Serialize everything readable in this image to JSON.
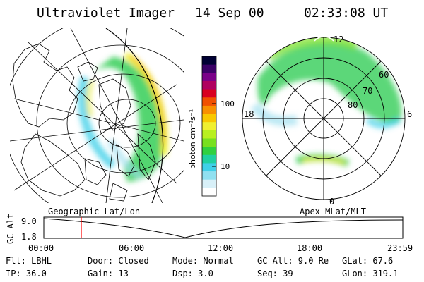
{
  "header": {
    "instrument": "Ultraviolet Imager",
    "date": "14 Sep 00",
    "time": "02:33:08 UT"
  },
  "colorbar": {
    "unit_label": "photon cm⁻²s⁻¹",
    "ticks": [
      "100",
      "10"
    ],
    "colors": [
      "#000033",
      "#3a0066",
      "#7a0088",
      "#b00060",
      "#d80020",
      "#f05000",
      "#f89000",
      "#f8c800",
      "#f0f030",
      "#b8f020",
      "#78e020",
      "#30d040",
      "#20d0a0",
      "#40d0e8",
      "#90e0f0",
      "#d8f0f8",
      "#ffffff"
    ]
  },
  "left_panel": {
    "label": "Geographic Lat/Lon"
  },
  "right_panel": {
    "label": "Apex MLat/MLT",
    "mlt_labels": {
      "top": "12",
      "left": "18",
      "right": "6",
      "bottom": "0"
    },
    "lat_labels": [
      "60",
      "70",
      "80"
    ]
  },
  "altitude_plot": {
    "ylabel": "GC Alt",
    "y_ticks": [
      "9.0",
      "1.8"
    ],
    "x_ticks": [
      "00:00",
      "06:00",
      "12:00",
      "18:00",
      "23:59"
    ],
    "current_time_marker_color": "#ff0000"
  },
  "info": {
    "row1": {
      "flt": "Flt: LBHL",
      "door": "Door: Closed",
      "mode": "Mode: Normal",
      "gcalt": "GC Alt: 9.0 Re",
      "glat": "GLat:  67.6"
    },
    "row2": {
      "ip": "IP: 36.0",
      "gain": "Gain: 13",
      "dsp": "Dsp:    3.0",
      "seq": "Seq: 39",
      "glon": "GLon: 319.1"
    }
  }
}
